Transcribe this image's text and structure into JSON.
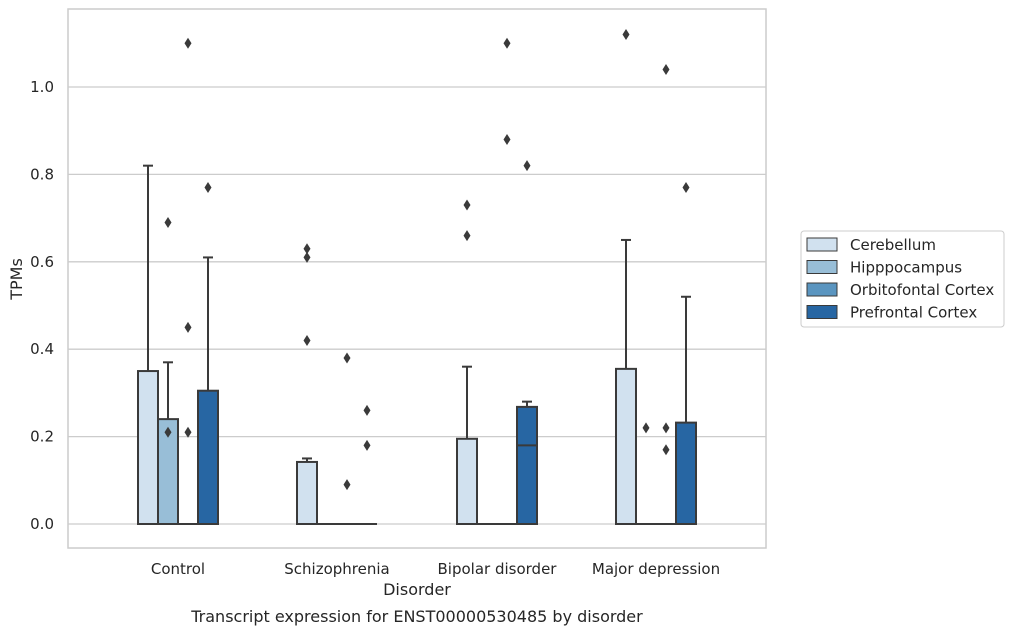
{
  "chart_data": {
    "type": "box",
    "title": "",
    "caption": "Transcript expression for ENST00000530485 by disorder",
    "xlabel": "Disorder",
    "ylabel": "TPMs",
    "ylim": [
      -0.055,
      1.17
    ],
    "yticks": [
      0.0,
      0.2,
      0.4,
      0.6,
      0.8,
      1.0
    ],
    "ytick_labels": [
      "0.0",
      "0.2",
      "0.4",
      "0.6",
      "0.8",
      "1.0"
    ],
    "grid": "horizontal",
    "legend_position": "right",
    "categories": [
      "Control",
      "Schizophrenia",
      "Bipolar disorder",
      "Major depression"
    ],
    "series": [
      {
        "name": "Cerebellum",
        "color": "#d1e1ef",
        "boxes": [
          {
            "q1": 0.0,
            "median": 0.0,
            "q3": 0.35,
            "whisker_low": 0.0,
            "whisker_high": 0.82,
            "outliers": []
          },
          {
            "q1": 0.0,
            "median": 0.0,
            "q3": 0.142,
            "whisker_low": 0.0,
            "whisker_high": 0.15,
            "outliers": [
              0.63,
              0.61,
              0.42
            ]
          },
          {
            "q1": 0.0,
            "median": 0.0,
            "q3": 0.195,
            "whisker_low": 0.0,
            "whisker_high": 0.36,
            "outliers": [
              0.73,
              0.66
            ]
          },
          {
            "q1": 0.0,
            "median": 0.0,
            "q3": 0.355,
            "whisker_low": 0.0,
            "whisker_high": 0.65,
            "outliers": [
              1.12
            ]
          }
        ]
      },
      {
        "name": "Hipppocampus",
        "color": "#98bed7",
        "boxes": [
          {
            "q1": 0.0,
            "median": 0.0,
            "q3": 0.24,
            "whisker_low": 0.0,
            "whisker_high": 0.37,
            "outliers": [
              0.69,
              0.21
            ]
          },
          {
            "q1": 0.0,
            "median": 0.0,
            "q3": 0.0,
            "whisker_low": 0.0,
            "whisker_high": 0.0,
            "outliers": []
          },
          {
            "q1": 0.0,
            "median": 0.0,
            "q3": 0.0,
            "whisker_low": 0.0,
            "whisker_high": 0.0,
            "outliers": []
          },
          {
            "q1": 0.0,
            "median": 0.0,
            "q3": 0.0,
            "whisker_low": 0.0,
            "whisker_high": 0.0,
            "outliers": [
              0.22
            ]
          }
        ]
      },
      {
        "name": "Orbitofontal Cortex",
        "color": "#5a95c0",
        "boxes": [
          {
            "q1": 0.0,
            "median": 0.0,
            "q3": 0.0,
            "whisker_low": 0.0,
            "whisker_high": 0.0,
            "outliers": [
              1.1,
              0.45,
              0.21
            ]
          },
          {
            "q1": 0.0,
            "median": 0.0,
            "q3": 0.0,
            "whisker_low": 0.0,
            "whisker_high": 0.0,
            "outliers": [
              0.38,
              0.09
            ]
          },
          {
            "q1": 0.0,
            "median": 0.0,
            "q3": 0.0,
            "whisker_low": 0.0,
            "whisker_high": 0.0,
            "outliers": [
              1.1,
              0.88
            ]
          },
          {
            "q1": 0.0,
            "median": 0.0,
            "q3": 0.0,
            "whisker_low": 0.0,
            "whisker_high": 0.0,
            "outliers": [
              1.04,
              0.22,
              0.17
            ]
          }
        ]
      },
      {
        "name": "Prefrontal Cortex",
        "color": "#2766a3",
        "boxes": [
          {
            "q1": 0.0,
            "median": 0.0,
            "q3": 0.305,
            "whisker_low": 0.0,
            "whisker_high": 0.61,
            "outliers": [
              0.77
            ]
          },
          {
            "q1": 0.0,
            "median": 0.0,
            "q3": 0.0,
            "whisker_low": 0.0,
            "whisker_high": 0.0,
            "outliers": [
              0.26,
              0.18
            ]
          },
          {
            "q1": 0.0,
            "median": 0.18,
            "q3": 0.268,
            "whisker_low": 0.0,
            "whisker_high": 0.28,
            "outliers": [
              0.82
            ]
          },
          {
            "q1": 0.0,
            "median": 0.0,
            "q3": 0.232,
            "whisker_low": 0.0,
            "whisker_high": 0.52,
            "outliers": [
              0.77
            ]
          }
        ]
      }
    ]
  }
}
